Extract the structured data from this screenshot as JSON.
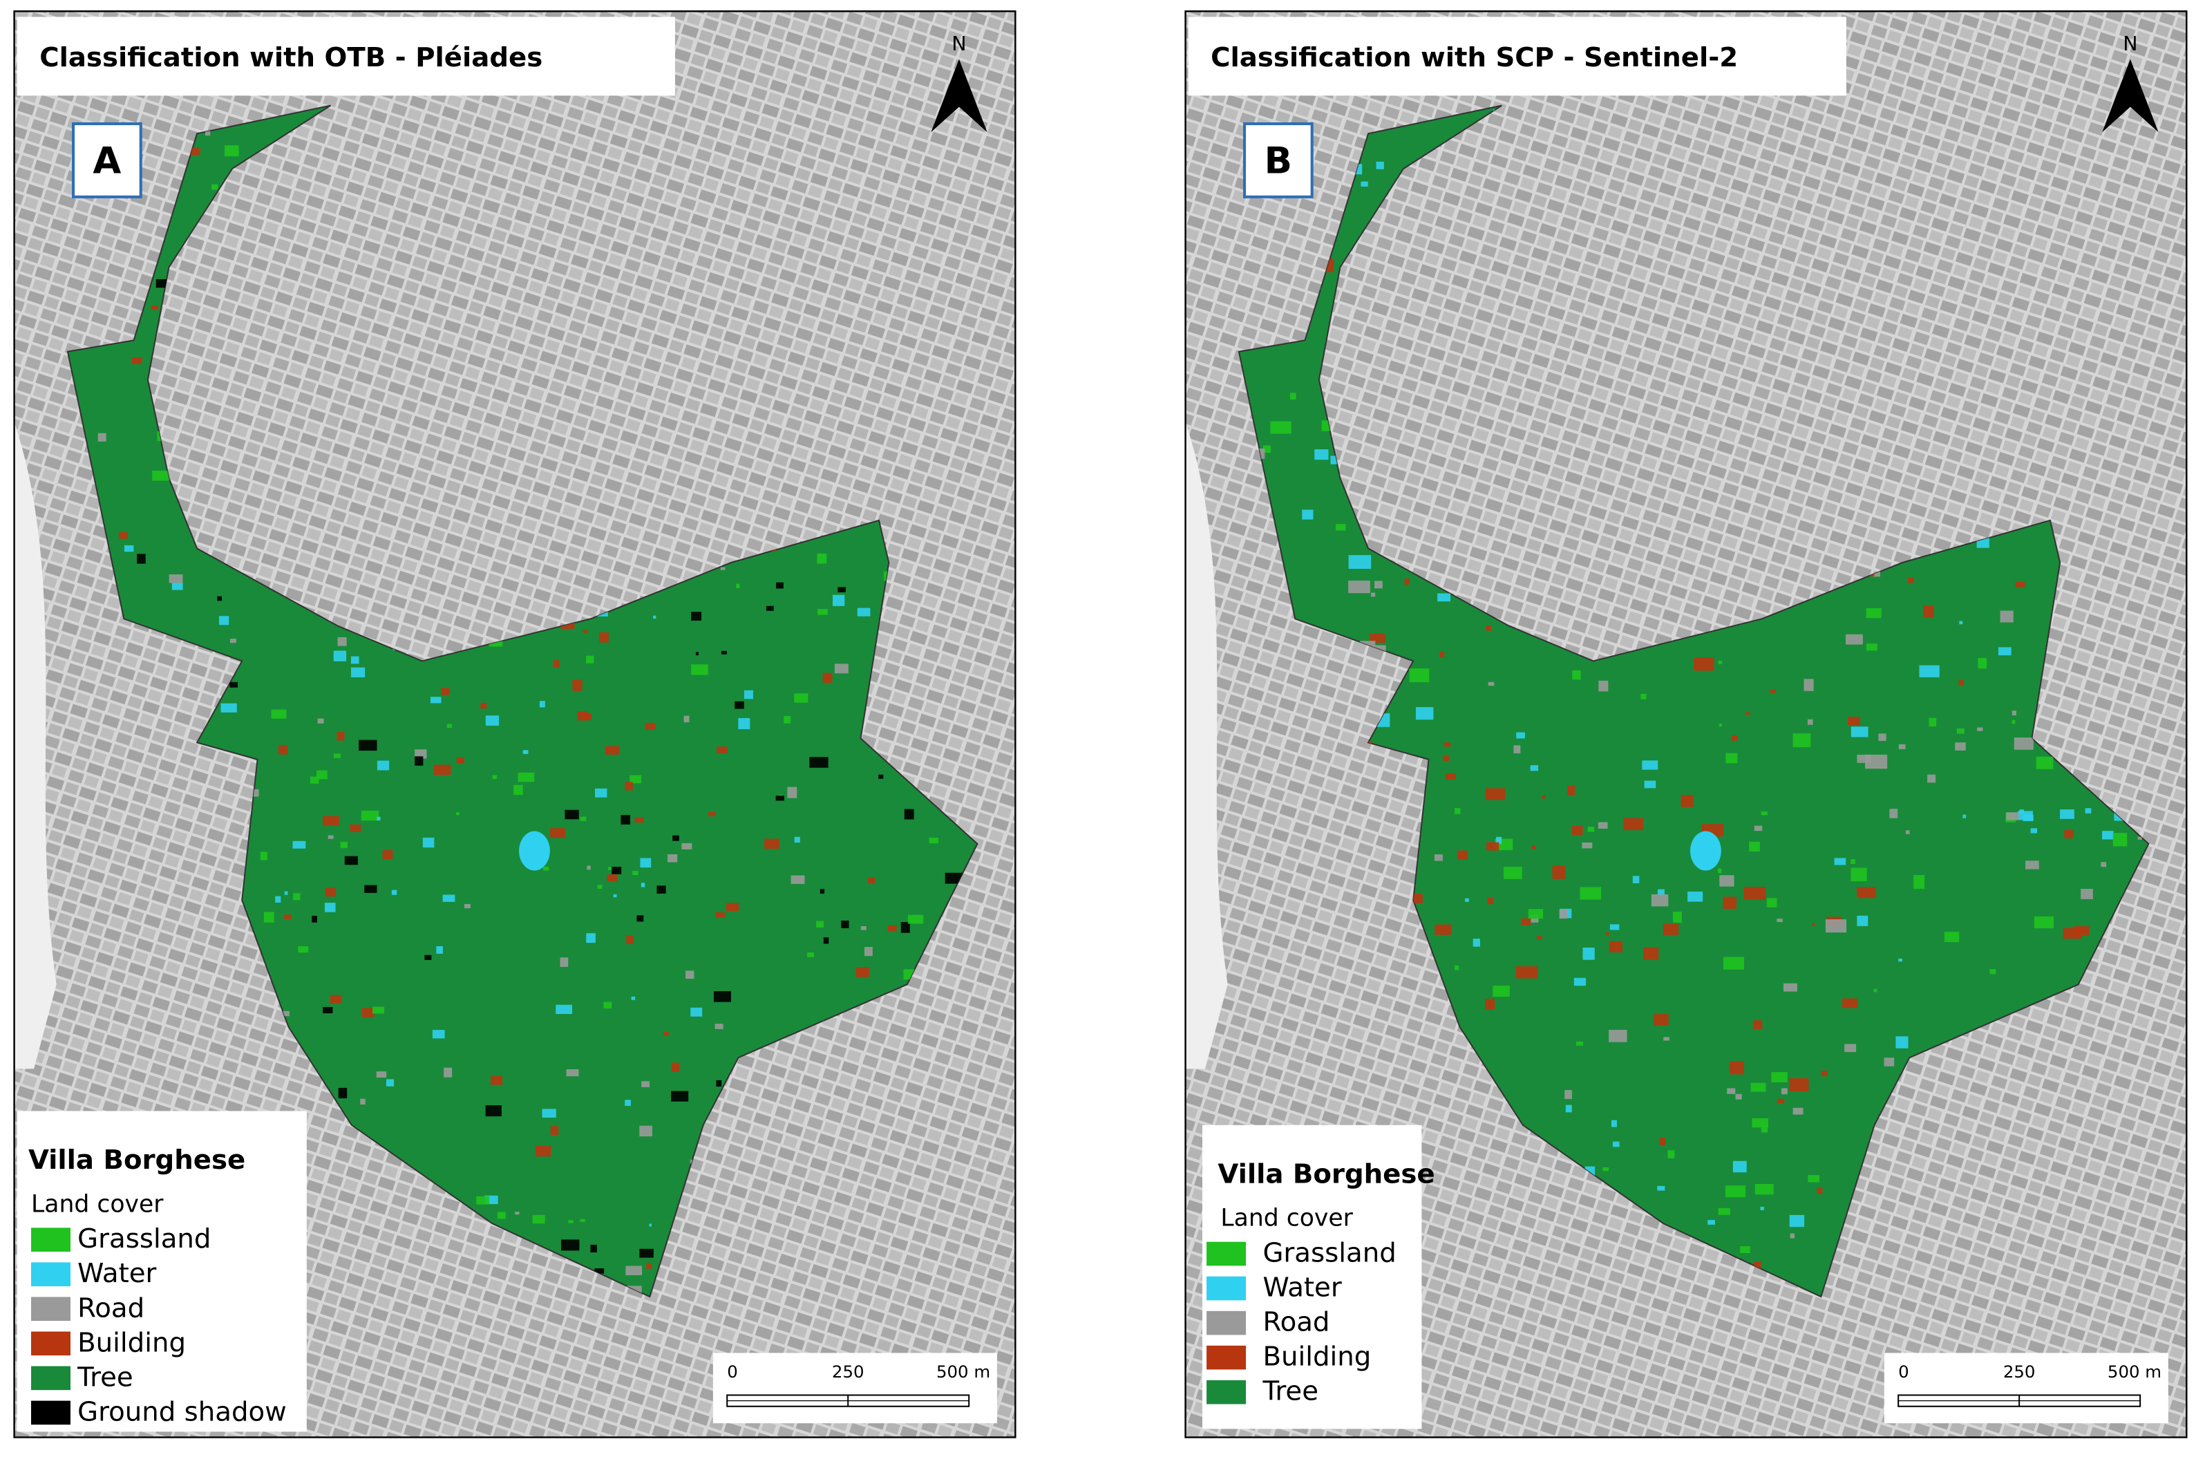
{
  "panels": [
    {
      "title": "Classification with OTB - Pléiades",
      "label": "A",
      "north": "N",
      "legend": {
        "title": "Villa Borghese",
        "subtitle": "Land cover",
        "items": [
          {
            "name": "Grassland",
            "color": "#1fc21f"
          },
          {
            "name": "Water",
            "color": "#30d0f0"
          },
          {
            "name": "Road",
            "color": "#9a9a9a"
          },
          {
            "name": "Building",
            "color": "#b8360f"
          },
          {
            "name": "Tree",
            "color": "#198a3a"
          },
          {
            "name": "Ground shadow",
            "color": "#000000"
          }
        ]
      },
      "scale": [
        "0",
        "250",
        "500 m"
      ]
    },
    {
      "title": "Classification with SCP - Sentinel-2",
      "label": "B",
      "north": "N",
      "legend": {
        "title": "Villa Borghese",
        "subtitle": "Land cover",
        "items": [
          {
            "name": "Grassland",
            "color": "#1fc21f"
          },
          {
            "name": "Water",
            "color": "#30d0f0"
          },
          {
            "name": "Road",
            "color": "#9a9a9a"
          },
          {
            "name": "Building",
            "color": "#b8360f"
          },
          {
            "name": "Tree",
            "color": "#198a3a"
          }
        ]
      },
      "scale": [
        "0",
        "250",
        "500 m"
      ]
    }
  ]
}
